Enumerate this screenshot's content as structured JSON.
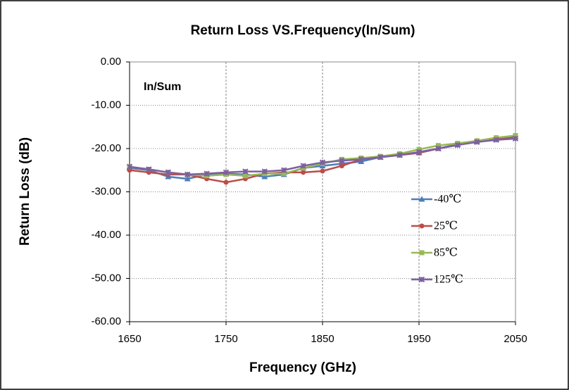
{
  "chart_data": {
    "type": "line",
    "title": "Return Loss VS.Frequency(In/Sum)",
    "annotation": "In/Sum",
    "x_label": "Frequency (GHz)",
    "y_label": "Return Loss (dB)",
    "x": [
      1650,
      1670,
      1690,
      1710,
      1730,
      1750,
      1770,
      1790,
      1810,
      1830,
      1850,
      1870,
      1890,
      1910,
      1930,
      1950,
      1970,
      1990,
      2010,
      2030,
      2050
    ],
    "xlim": [
      1650,
      2050
    ],
    "xticks": [
      1650,
      1750,
      1850,
      1950,
      2050
    ],
    "ylim": [
      -60,
      0
    ],
    "yticks": [
      {
        "value": 0,
        "label": "0.00"
      },
      {
        "value": -10,
        "label": "-10.00"
      },
      {
        "value": -20,
        "label": "-20.00"
      },
      {
        "value": -30,
        "label": "-30.00"
      },
      {
        "value": -40,
        "label": "-40.00"
      },
      {
        "value": -50,
        "label": "-50.00"
      },
      {
        "value": -60,
        "label": "-60.00"
      }
    ],
    "grid": true,
    "legend": "right",
    "series": [
      {
        "name": "-40℃",
        "color": "#4a7ebb",
        "marker": "triangle",
        "values": [
          -24.5,
          -25,
          -26.5,
          -27,
          -26,
          -25.8,
          -26,
          -26.5,
          -26,
          -24.5,
          -24,
          -23.5,
          -23,
          -22,
          -21.5,
          -21,
          -20,
          -19,
          -18.3,
          -17.8,
          -17.3
        ]
      },
      {
        "name": "25℃",
        "color": "#be4b48",
        "marker": "circle",
        "values": [
          -25,
          -25.5,
          -26,
          -26,
          -27,
          -27.8,
          -27,
          -25.8,
          -25.5,
          -25.5,
          -25.2,
          -24,
          -22.5,
          -22,
          -21.5,
          -21,
          -20,
          -19.2,
          -18.3,
          -17.8,
          -17.5
        ]
      },
      {
        "name": "85℃",
        "color": "#98b954",
        "marker": "square",
        "values": [
          -24.2,
          -24.8,
          -25.5,
          -26,
          -26.3,
          -26,
          -26.3,
          -25.8,
          -25.8,
          -24.5,
          -23.5,
          -22.5,
          -22.2,
          -21.8,
          -21.2,
          -20.2,
          -19.3,
          -18.8,
          -18.2,
          -17.5,
          -17
        ]
      },
      {
        "name": "125℃",
        "color": "#7d60a0",
        "marker": "x",
        "values": [
          -24.2,
          -24.8,
          -25.5,
          -26,
          -25.8,
          -25.5,
          -25.3,
          -25.3,
          -25,
          -24,
          -23.2,
          -22.8,
          -22.5,
          -22,
          -21.5,
          -20.8,
          -20,
          -19.2,
          -18.5,
          -18,
          -17.7
        ]
      }
    ]
  }
}
